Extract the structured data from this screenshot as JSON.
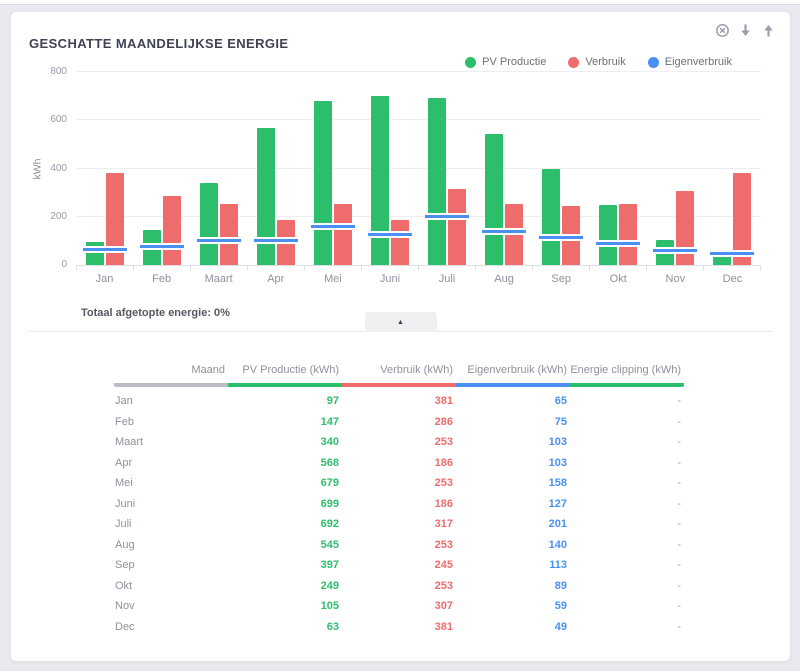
{
  "header": {
    "title": "GESCHATTE MAANDELIJKSE ENERGIE",
    "icons": [
      "close-circle",
      "arrow-down",
      "arrow-up"
    ]
  },
  "legend": {
    "items": [
      {
        "label": "PV Productie",
        "color": "#2dbe6c"
      },
      {
        "label": "Verbruik",
        "color": "#ef6c6c"
      },
      {
        "label": "Eigenverbruik",
        "color": "#4a90f2"
      }
    ]
  },
  "chart_data": {
    "type": "bar",
    "title": "GESCHATTE MAANDELIJKSE ENERGIE",
    "categories": [
      "Jan",
      "Feb",
      "Maart",
      "Apr",
      "Mei",
      "Juni",
      "Juli",
      "Aug",
      "Sep",
      "Okt",
      "Nov",
      "Dec"
    ],
    "series": [
      {
        "name": "PV Productie",
        "type": "bar",
        "color": "#2dbe6c",
        "values": [
          97,
          147,
          340,
          568,
          679,
          699,
          692,
          545,
          397,
          249,
          105,
          63
        ]
      },
      {
        "name": "Verbruik",
        "type": "bar",
        "color": "#ef6c6c",
        "values": [
          381,
          286,
          253,
          186,
          253,
          186,
          317,
          253,
          245,
          253,
          307,
          381
        ]
      },
      {
        "name": "Eigenverbruik",
        "type": "line-marker",
        "color": "#4a90f2",
        "values": [
          65,
          75,
          103,
          103,
          158,
          127,
          201,
          140,
          113,
          89,
          59,
          49
        ]
      }
    ],
    "xlabel": "",
    "ylabel": "kWh",
    "ylim": [
      0,
      800
    ],
    "yticks": [
      0,
      200,
      400,
      600,
      800
    ],
    "grid": true,
    "legend_position": "top-right"
  },
  "clipping_note": "Totaal afgetopte energie: 0%",
  "collapse_button": {
    "glyph": "▲"
  },
  "table": {
    "columns": [
      {
        "label": "Maand",
        "color": "#bcbec6"
      },
      {
        "label": "PV Productie (kWh)",
        "color": "#2dbe6c"
      },
      {
        "label": "Verbruik (kWh)",
        "color": "#ef6c6c"
      },
      {
        "label": "Eigenverbruik (kWh)",
        "color": "#4a90f2"
      },
      {
        "label": "Energie clipping (kWh)",
        "color": "#2dbe6c"
      }
    ],
    "value_colors": [
      "#8f929e",
      "#2dbe6c",
      "#ef6c6c",
      "#4a90f2",
      "#9ea0ab"
    ],
    "rows": [
      [
        "Jan",
        "97",
        "381",
        "65",
        "-"
      ],
      [
        "Feb",
        "147",
        "286",
        "75",
        "-"
      ],
      [
        "Maart",
        "340",
        "253",
        "103",
        "-"
      ],
      [
        "Apr",
        "568",
        "186",
        "103",
        "-"
      ],
      [
        "Mei",
        "679",
        "253",
        "158",
        "-"
      ],
      [
        "Juni",
        "699",
        "186",
        "127",
        "-"
      ],
      [
        "Juli",
        "692",
        "317",
        "201",
        "-"
      ],
      [
        "Aug",
        "545",
        "253",
        "140",
        "-"
      ],
      [
        "Sep",
        "397",
        "245",
        "113",
        "-"
      ],
      [
        "Okt",
        "249",
        "253",
        "89",
        "-"
      ],
      [
        "Nov",
        "105",
        "307",
        "59",
        "-"
      ],
      [
        "Dec",
        "63",
        "381",
        "49",
        "-"
      ]
    ]
  }
}
